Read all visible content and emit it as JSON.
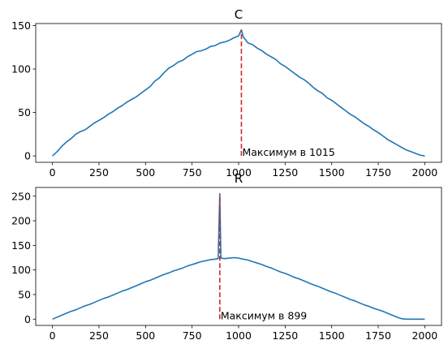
{
  "chart_data": [
    {
      "type": "line",
      "title": "C",
      "xlim": [
        -90,
        2090
      ],
      "ylim": [
        -7.3,
        152.3
      ],
      "xticks": [
        0,
        250,
        500,
        750,
        1000,
        1250,
        1500,
        1750,
        2000
      ],
      "yticks": [
        0,
        50,
        100,
        150
      ],
      "series_color": "#1f77b4",
      "marker_color": "#d62728",
      "series": [
        {
          "x": [
            0,
            25,
            50,
            75,
            100,
            125,
            150,
            175,
            200,
            225,
            250,
            275,
            300,
            325,
            350,
            375,
            400,
            425,
            450,
            475,
            500,
            525,
            550,
            575,
            600,
            625,
            650,
            675,
            700,
            725,
            750,
            775,
            800,
            825,
            850,
            875,
            900,
            925,
            950,
            975,
            1000,
            1015,
            1025,
            1050,
            1075,
            1100,
            1125,
            1150,
            1175,
            1200,
            1225,
            1250,
            1275,
            1300,
            1325,
            1350,
            1375,
            1400,
            1425,
            1450,
            1475,
            1500,
            1525,
            1550,
            1575,
            1600,
            1625,
            1650,
            1675,
            1700,
            1725,
            1750,
            1775,
            1800,
            1825,
            1850,
            1875,
            1900,
            1925,
            1950,
            1975,
            2000
          ],
          "y": [
            0,
            5,
            11,
            16,
            20,
            25,
            28,
            30,
            34,
            38,
            41,
            44,
            48,
            51,
            55,
            58,
            62,
            65,
            68,
            72,
            76,
            80,
            86,
            90,
            96,
            101,
            104,
            108,
            110,
            114,
            117,
            120,
            121,
            123,
            126,
            127,
            130,
            131,
            133,
            136,
            138,
            145,
            137,
            130,
            128,
            124,
            121,
            117,
            114,
            111,
            106,
            103,
            99,
            95,
            91,
            88,
            84,
            79,
            75,
            72,
            67,
            64,
            60,
            56,
            52,
            48,
            45,
            41,
            37,
            34,
            30,
            27,
            23,
            19,
            16,
            13,
            10,
            7,
            5,
            3,
            1,
            0
          ]
        }
      ],
      "max_marker": {
        "x": 1015,
        "y": 145,
        "label": "Максимум в 1015"
      }
    },
    {
      "type": "line",
      "title": "R",
      "xlim": [
        -90,
        2090
      ],
      "ylim": [
        -12.75,
        267.75
      ],
      "xticks": [
        0,
        250,
        500,
        750,
        1000,
        1250,
        1500,
        1750,
        2000
      ],
      "yticks": [
        0,
        50,
        100,
        150,
        200,
        250
      ],
      "series_color": "#1f77b4",
      "marker_color": "#d62728",
      "series": [
        {
          "x": [
            0,
            25,
            50,
            75,
            100,
            125,
            150,
            175,
            200,
            225,
            250,
            275,
            300,
            325,
            350,
            375,
            400,
            425,
            450,
            475,
            500,
            525,
            550,
            575,
            600,
            625,
            650,
            675,
            700,
            725,
            750,
            775,
            800,
            825,
            850,
            875,
            890,
            899,
            905,
            925,
            950,
            975,
            1000,
            1025,
            1050,
            1075,
            1100,
            1125,
            1150,
            1175,
            1200,
            1225,
            1250,
            1275,
            1300,
            1325,
            1350,
            1375,
            1400,
            1425,
            1450,
            1475,
            1500,
            1525,
            1550,
            1575,
            1600,
            1625,
            1650,
            1675,
            1700,
            1725,
            1750,
            1775,
            1800,
            1825,
            1850,
            1875,
            1900,
            1925,
            1950,
            1975,
            2000
          ],
          "y": [
            0,
            4,
            8,
            12,
            16,
            19,
            23,
            27,
            30,
            34,
            38,
            42,
            45,
            49,
            53,
            57,
            60,
            64,
            68,
            72,
            76,
            79,
            83,
            87,
            91,
            94,
            98,
            101,
            104,
            108,
            111,
            114,
            117,
            119,
            121,
            122,
            123,
            255,
            124,
            123,
            124,
            125,
            124,
            122,
            120,
            117,
            114,
            111,
            107,
            104,
            100,
            96,
            93,
            89,
            85,
            82,
            78,
            74,
            70,
            67,
            63,
            59,
            55,
            52,
            48,
            44,
            40,
            37,
            33,
            29,
            26,
            22,
            19,
            16,
            12,
            8,
            4,
            1,
            0,
            0,
            0,
            0,
            0
          ]
        }
      ],
      "max_marker": {
        "x": 899,
        "y": 255,
        "label": "Максимум в 899"
      }
    }
  ]
}
